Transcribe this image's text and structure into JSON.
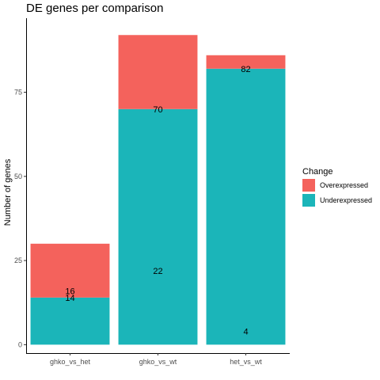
{
  "chart_data": {
    "type": "bar",
    "stacked": true,
    "title": "DE genes per comparison",
    "xlabel": "",
    "ylabel": "Number of genes",
    "categories": [
      "ghko_vs_het",
      "ghko_vs_wt",
      "het_vs_wt"
    ],
    "series": [
      {
        "name": "Underexpressed",
        "values": [
          14,
          70,
          82
        ],
        "color": "#1bb5b9"
      },
      {
        "name": "Overexpressed",
        "values": [
          16,
          22,
          4
        ],
        "color": "#f4625c"
      }
    ],
    "data_labels": [
      {
        "category": "ghko_vs_het",
        "y": 16,
        "text": "16"
      },
      {
        "category": "ghko_vs_het",
        "y": 14,
        "text": "14"
      },
      {
        "category": "ghko_vs_wt",
        "y": 70,
        "text": "70"
      },
      {
        "category": "ghko_vs_wt",
        "y": 22,
        "text": "22"
      },
      {
        "category": "het_vs_wt",
        "y": 82,
        "text": "82"
      },
      {
        "category": "het_vs_wt",
        "y": 4,
        "text": "4"
      }
    ],
    "ylim": [
      -2.5,
      97
    ],
    "yticks": [
      0,
      25,
      50,
      75
    ],
    "grid": false,
    "legend": {
      "title": "Change",
      "placement": "right",
      "items": [
        {
          "label": "Overexpressed",
          "color": "#f4625c"
        },
        {
          "label": "Underexpressed",
          "color": "#1bb5b9"
        }
      ]
    }
  }
}
